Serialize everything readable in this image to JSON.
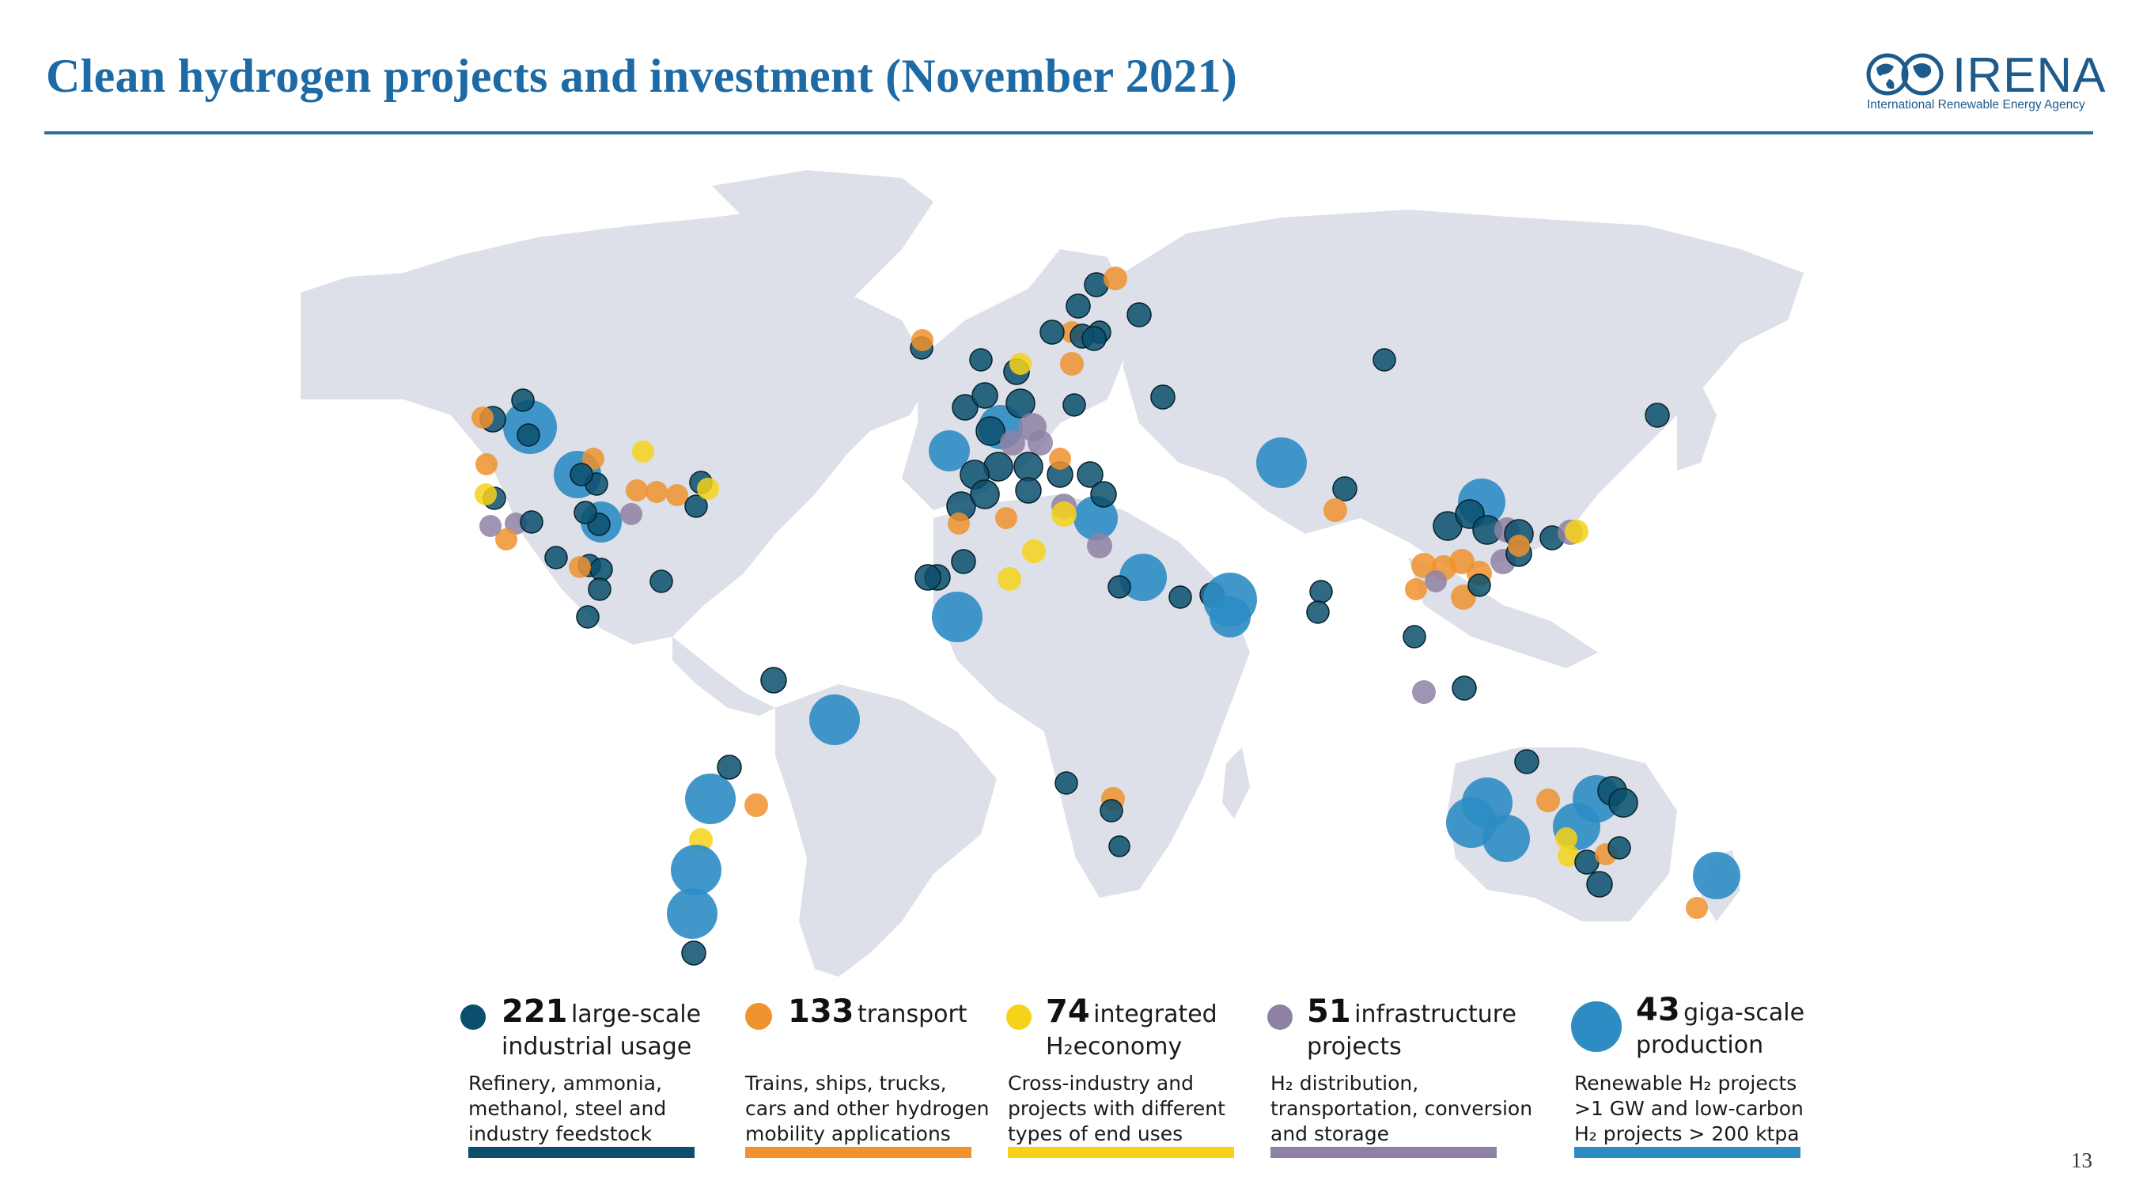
{
  "slide": {
    "title": "Clean hydrogen projects and investment (November 2021)",
    "page_number": "13"
  },
  "logo": {
    "name": "IRENA",
    "tagline": "International Renewable Energy Agency"
  },
  "legend": [
    {
      "key": "industrial",
      "count": "221",
      "label_line1": "large-scale",
      "label_line2": "industrial usage",
      "description": [
        "Refinery, ammonia,",
        "methanol, steel and",
        "industry feedstock"
      ],
      "color": "#0b4f6c"
    },
    {
      "key": "transport",
      "count": "133",
      "label_line1": "transport",
      "label_line2": "",
      "description": [
        "Trains, ships, trucks,",
        "cars and other hydrogen",
        "mobility applications"
      ],
      "color": "#f0922e"
    },
    {
      "key": "integrated",
      "count": "74",
      "label_line1": "integrated",
      "label_line2": "H₂economy",
      "description": [
        "Cross-industry and",
        "projects with different",
        "types of end uses"
      ],
      "color": "#f6d219"
    },
    {
      "key": "infrastructure",
      "count": "51",
      "label_line1": "infrastructure",
      "label_line2": "projects",
      "description": [
        "H₂ distribution,",
        "transportation, conversion",
        "and storage"
      ],
      "color": "#8e81a3"
    },
    {
      "key": "giga",
      "count": "43",
      "label_line1": "giga-scale",
      "label_line2": "production",
      "description": [
        "Renewable H₂ projects",
        ">1 GW and low-carbon",
        "H₂ projects > 200 ktpa"
      ],
      "color": "#2e8cc4"
    }
  ],
  "colors": {
    "land": "#dde0e8",
    "industrial": "#0b4f6c",
    "transport": "#f0922e",
    "integrated": "#f6d219",
    "infrastructure": "#8e81a3",
    "giga": "#2e8cc4"
  }
}
